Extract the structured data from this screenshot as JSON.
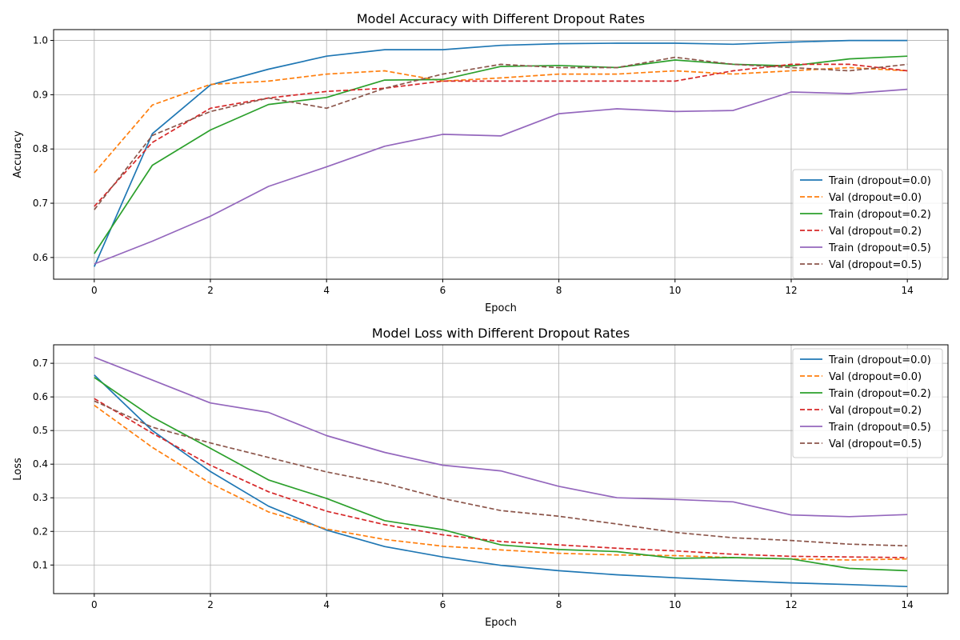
{
  "chart_data": [
    {
      "type": "line",
      "title": "Model Accuracy with Different Dropout Rates",
      "xlabel": "Epoch",
      "ylabel": "Accuracy",
      "xlim": [
        -0.7,
        14.7
      ],
      "ylim": [
        0.56,
        1.02
      ],
      "xticks": [
        0,
        2,
        4,
        6,
        8,
        10,
        12,
        14
      ],
      "yticks": [
        0.6,
        0.7,
        0.8,
        0.9,
        1.0
      ],
      "ytick_decimals": 1,
      "grid": true,
      "legend_position": "lower-right",
      "x": [
        0,
        1,
        2,
        3,
        4,
        5,
        6,
        7,
        8,
        9,
        10,
        11,
        12,
        13,
        14
      ],
      "series": [
        {
          "name": "Train (dropout=0.0)",
          "color": "#1f77b4",
          "dashed": false,
          "values": [
            0.583,
            0.828,
            0.918,
            0.947,
            0.971,
            0.983,
            0.983,
            0.991,
            0.994,
            0.995,
            0.995,
            0.993,
            0.997,
            1.0,
            1.0
          ]
        },
        {
          "name": "Val (dropout=0.0)",
          "color": "#ff7f0e",
          "dashed": true,
          "values": [
            0.756,
            0.881,
            0.919,
            0.925,
            0.938,
            0.944,
            0.925,
            0.931,
            0.938,
            0.938,
            0.944,
            0.938,
            0.944,
            0.95,
            0.944
          ]
        },
        {
          "name": "Train (dropout=0.2)",
          "color": "#2ca02c",
          "dashed": false,
          "values": [
            0.607,
            0.77,
            0.835,
            0.882,
            0.895,
            0.927,
            0.928,
            0.952,
            0.954,
            0.95,
            0.964,
            0.956,
            0.953,
            0.966,
            0.971
          ]
        },
        {
          "name": "Val (dropout=0.2)",
          "color": "#d62728",
          "dashed": true,
          "values": [
            0.694,
            0.812,
            0.875,
            0.894,
            0.906,
            0.912,
            0.925,
            0.925,
            0.925,
            0.925,
            0.925,
            0.944,
            0.956,
            0.956,
            0.944
          ]
        },
        {
          "name": "Train (dropout=0.5)",
          "color": "#9467bd",
          "dashed": false,
          "values": [
            0.588,
            0.63,
            0.676,
            0.731,
            0.767,
            0.805,
            0.827,
            0.824,
            0.865,
            0.874,
            0.869,
            0.871,
            0.905,
            0.902,
            0.91
          ]
        },
        {
          "name": "Val (dropout=0.5)",
          "color": "#8c564b",
          "dashed": true,
          "values": [
            0.688,
            0.825,
            0.869,
            0.894,
            0.875,
            0.912,
            0.938,
            0.956,
            0.95,
            0.95,
            0.969,
            0.956,
            0.95,
            0.944,
            0.956
          ]
        }
      ]
    },
    {
      "type": "line",
      "title": "Model Loss with Different Dropout Rates",
      "xlabel": "Epoch",
      "ylabel": "Loss",
      "xlim": [
        -0.7,
        14.7
      ],
      "ylim": [
        0.015,
        0.755
      ],
      "xticks": [
        0,
        2,
        4,
        6,
        8,
        10,
        12,
        14
      ],
      "yticks": [
        0.1,
        0.2,
        0.3,
        0.4,
        0.5,
        0.6,
        0.7
      ],
      "ytick_decimals": 1,
      "grid": true,
      "legend_position": "upper-right",
      "x": [
        0,
        1,
        2,
        3,
        4,
        5,
        6,
        7,
        8,
        9,
        10,
        11,
        12,
        13,
        14
      ],
      "series": [
        {
          "name": "Train (dropout=0.0)",
          "color": "#1f77b4",
          "dashed": false,
          "values": [
            0.665,
            0.5,
            0.378,
            0.275,
            0.204,
            0.155,
            0.124,
            0.099,
            0.083,
            0.071,
            0.062,
            0.054,
            0.047,
            0.042,
            0.036
          ]
        },
        {
          "name": "Val (dropout=0.0)",
          "color": "#ff7f0e",
          "dashed": true,
          "values": [
            0.575,
            0.45,
            0.343,
            0.258,
            0.207,
            0.176,
            0.156,
            0.145,
            0.135,
            0.13,
            0.128,
            0.122,
            0.118,
            0.115,
            0.118
          ]
        },
        {
          "name": "Train (dropout=0.2)",
          "color": "#2ca02c",
          "dashed": false,
          "values": [
            0.658,
            0.54,
            0.447,
            0.353,
            0.298,
            0.232,
            0.205,
            0.16,
            0.146,
            0.14,
            0.12,
            0.122,
            0.118,
            0.09,
            0.083
          ]
        },
        {
          "name": "Val (dropout=0.2)",
          "color": "#d62728",
          "dashed": true,
          "values": [
            0.595,
            0.492,
            0.397,
            0.318,
            0.26,
            0.22,
            0.19,
            0.17,
            0.16,
            0.15,
            0.142,
            0.132,
            0.126,
            0.124,
            0.122
          ]
        },
        {
          "name": "Train (dropout=0.5)",
          "color": "#9467bd",
          "dashed": false,
          "values": [
            0.718,
            0.65,
            0.582,
            0.554,
            0.485,
            0.435,
            0.397,
            0.38,
            0.334,
            0.3,
            0.295,
            0.288,
            0.249,
            0.244,
            0.25
          ]
        },
        {
          "name": "Val (dropout=0.5)",
          "color": "#8c564b",
          "dashed": true,
          "values": [
            0.588,
            0.51,
            0.463,
            0.42,
            0.377,
            0.343,
            0.298,
            0.262,
            0.245,
            0.222,
            0.197,
            0.181,
            0.173,
            0.162,
            0.157
          ]
        }
      ]
    }
  ]
}
